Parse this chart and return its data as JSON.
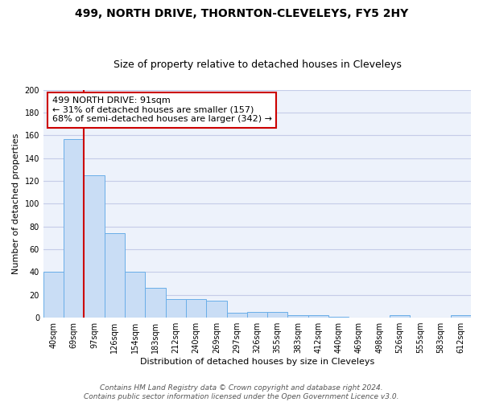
{
  "title": "499, NORTH DRIVE, THORNTON-CLEVELEYS, FY5 2HY",
  "subtitle": "Size of property relative to detached houses in Cleveleys",
  "xlabel": "Distribution of detached houses by size in Cleveleys",
  "ylabel": "Number of detached properties",
  "categories": [
    "40sqm",
    "69sqm",
    "97sqm",
    "126sqm",
    "154sqm",
    "183sqm",
    "212sqm",
    "240sqm",
    "269sqm",
    "297sqm",
    "326sqm",
    "355sqm",
    "383sqm",
    "412sqm",
    "440sqm",
    "469sqm",
    "498sqm",
    "526sqm",
    "555sqm",
    "583sqm",
    "612sqm"
  ],
  "values": [
    40,
    157,
    125,
    74,
    40,
    26,
    16,
    16,
    15,
    4,
    5,
    5,
    2,
    2,
    1,
    0,
    0,
    2,
    0,
    0,
    2
  ],
  "bar_color": "#c9ddf5",
  "bar_edge_color": "#6aaee8",
  "red_line_index": 1.5,
  "annotation_line1": "499 NORTH DRIVE: 91sqm",
  "annotation_line2": "← 31% of detached houses are smaller (157)",
  "annotation_line3": "68% of semi-detached houses are larger (342) →",
  "annotation_box_color": "white",
  "annotation_box_edge_color": "#cc0000",
  "red_line_color": "#cc0000",
  "ylim": [
    0,
    200
  ],
  "yticks": [
    0,
    20,
    40,
    60,
    80,
    100,
    120,
    140,
    160,
    180,
    200
  ],
  "footer_line1": "Contains HM Land Registry data © Crown copyright and database right 2024.",
  "footer_line2": "Contains public sector information licensed under the Open Government Licence v3.0.",
  "background_color": "#edf2fb",
  "grid_color": "#c5cce8",
  "title_fontsize": 10,
  "subtitle_fontsize": 9,
  "axis_fontsize": 8,
  "tick_fontsize": 7,
  "annotation_fontsize": 8,
  "footer_fontsize": 6.5
}
